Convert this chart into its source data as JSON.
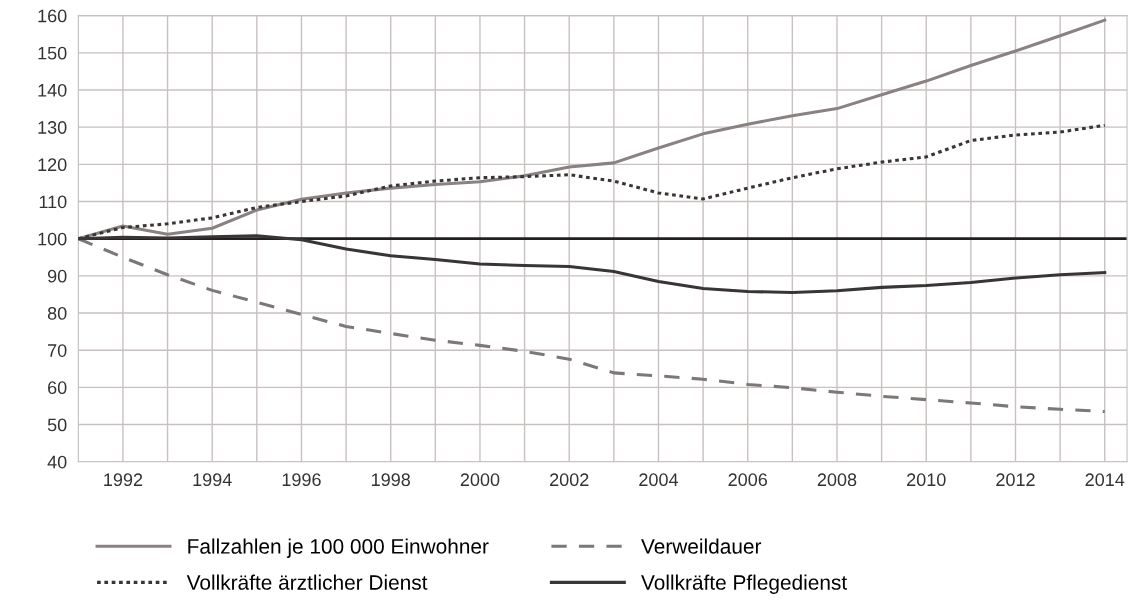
{
  "chart_data": {
    "type": "line",
    "x": [
      1991,
      1992,
      1993,
      1994,
      1995,
      1996,
      1997,
      1998,
      1999,
      2000,
      2001,
      2002,
      2003,
      2004,
      2005,
      2006,
      2007,
      2008,
      2009,
      2010,
      2011,
      2012,
      2013,
      2014
    ],
    "series": [
      {
        "name": "Fallzahlen je 100 000 Einwohner",
        "color": "#8a8282",
        "line_style": "solid",
        "values": [
          100,
          103.4,
          101.2,
          102.8,
          107.7,
          110.6,
          112.3,
          113.6,
          114.6,
          115.3,
          116.9,
          119.3,
          120.4,
          124.4,
          128.2,
          130.8,
          133.1,
          135,
          138.7,
          142.4,
          146.6,
          150.5,
          154.6,
          158.8
        ]
      },
      {
        "name": "Verweildauer",
        "color": "#7d7878",
        "line_style": "dashed",
        "values": [
          100,
          95,
          90.3,
          86.1,
          82.9,
          79.6,
          76.4,
          74.5,
          72.7,
          71.3,
          69.7,
          67.6,
          63.9,
          63.1,
          62.2,
          60.8,
          59.9,
          58.7,
          57.6,
          56.7,
          55.8,
          54.8,
          54.1,
          53.5
        ]
      },
      {
        "name": "Vollkräfte ärztlicher Dienst",
        "color": "#3a3535",
        "line_style": "dotted",
        "values": [
          100,
          103,
          104,
          105.6,
          108.4,
          110,
          111.5,
          114.2,
          115.5,
          116.4,
          116.7,
          117.2,
          115.5,
          112.3,
          110.7,
          113.6,
          116.4,
          118.8,
          120.6,
          122,
          126.4,
          127.9,
          128.7,
          130.5
        ]
      },
      {
        "name": "Vollkräfte Pflegedienst",
        "color": "#3a3535",
        "line_style": "solid",
        "values": [
          100,
          100.4,
          100.2,
          100.5,
          100.8,
          99.7,
          97.2,
          95.4,
          94.4,
          93.2,
          92.8,
          92.5,
          91.2,
          88.5,
          86.6,
          85.8,
          85.5,
          86,
          86.9,
          87.4,
          88.2,
          89.4,
          90.3,
          90.9
        ]
      }
    ],
    "xlim": [
      1991,
      2014.5
    ],
    "xticks": [
      {
        "value": 1991,
        "label": null
      },
      1992,
      {
        "value": 1993,
        "label": null
      },
      1994,
      {
        "value": 1995,
        "label": null
      },
      1996,
      {
        "value": 1997,
        "label": null
      },
      1998,
      {
        "value": 1999,
        "label": null
      },
      2000,
      {
        "value": 2001,
        "label": null
      },
      2002,
      {
        "value": 2003,
        "label": null
      },
      2004,
      {
        "value": 2005,
        "label": null
      },
      2006,
      {
        "value": 2007,
        "label": null
      },
      2008,
      {
        "value": 2009,
        "label": null
      },
      2010,
      {
        "value": 2011,
        "label": null
      },
      2012,
      {
        "value": 2013,
        "label": null
      },
      2014
    ],
    "ylim": [
      40,
      160
    ],
    "yticks": [
      40,
      50,
      60,
      70,
      80,
      90,
      100,
      110,
      120,
      130,
      140,
      150,
      160
    ],
    "ref_lines": [
      {
        "axis": "y",
        "value": 100,
        "color": "#231f20",
        "line_style": "solid"
      }
    ],
    "grid": true,
    "legend": "bottom",
    "marker": "none"
  }
}
